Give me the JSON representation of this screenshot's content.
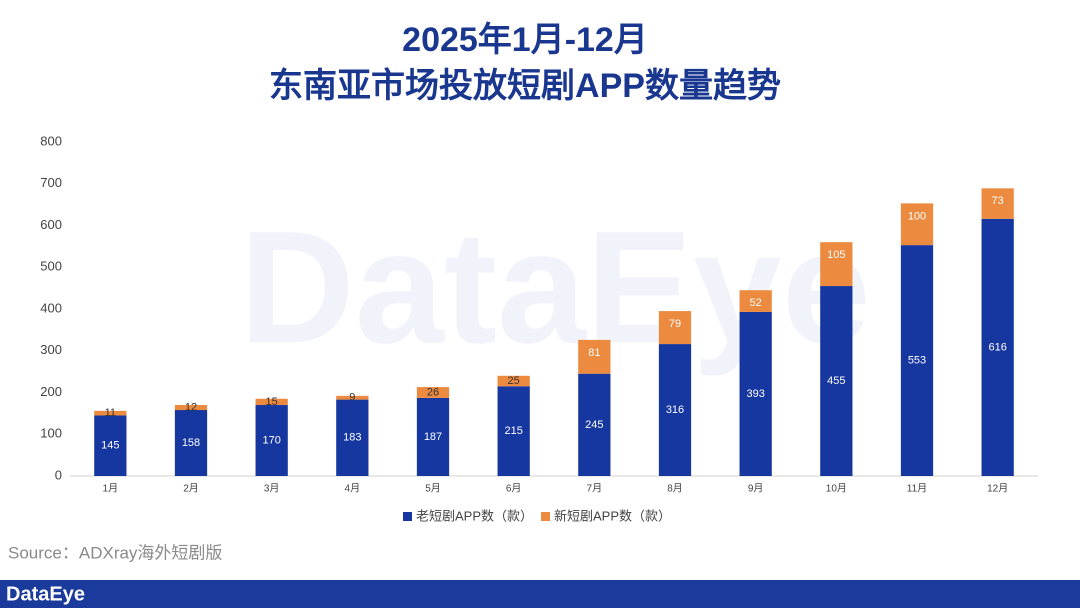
{
  "chart_data": {
    "type": "bar",
    "stacked": true,
    "title": "2025年1月-12月",
    "subtitle": "东南亚市场投放短剧APP数量趋势",
    "categories": [
      "1月",
      "2月",
      "3月",
      "4月",
      "5月",
      "6月",
      "7月",
      "8月",
      "9月",
      "10月",
      "11月",
      "12月"
    ],
    "series": [
      {
        "name": "老短剧APP数（款）",
        "color": "#1637a0",
        "values": [
          145,
          158,
          170,
          183,
          187,
          215,
          245,
          316,
          393,
          455,
          553,
          616
        ]
      },
      {
        "name": "新短剧APP数（款）",
        "color": "#ec8a3f",
        "values": [
          11,
          12,
          15,
          9,
          26,
          25,
          81,
          79,
          52,
          105,
          100,
          73
        ]
      }
    ],
    "ylim": [
      0,
      800
    ],
    "yticks": [
      0,
      100,
      200,
      300,
      400,
      500,
      600,
      700,
      800
    ],
    "grid": false,
    "legend": "bottom"
  },
  "source": "Source：ADXray海外短剧版",
  "watermark": "DataEye",
  "footer_logo": "DataEye"
}
